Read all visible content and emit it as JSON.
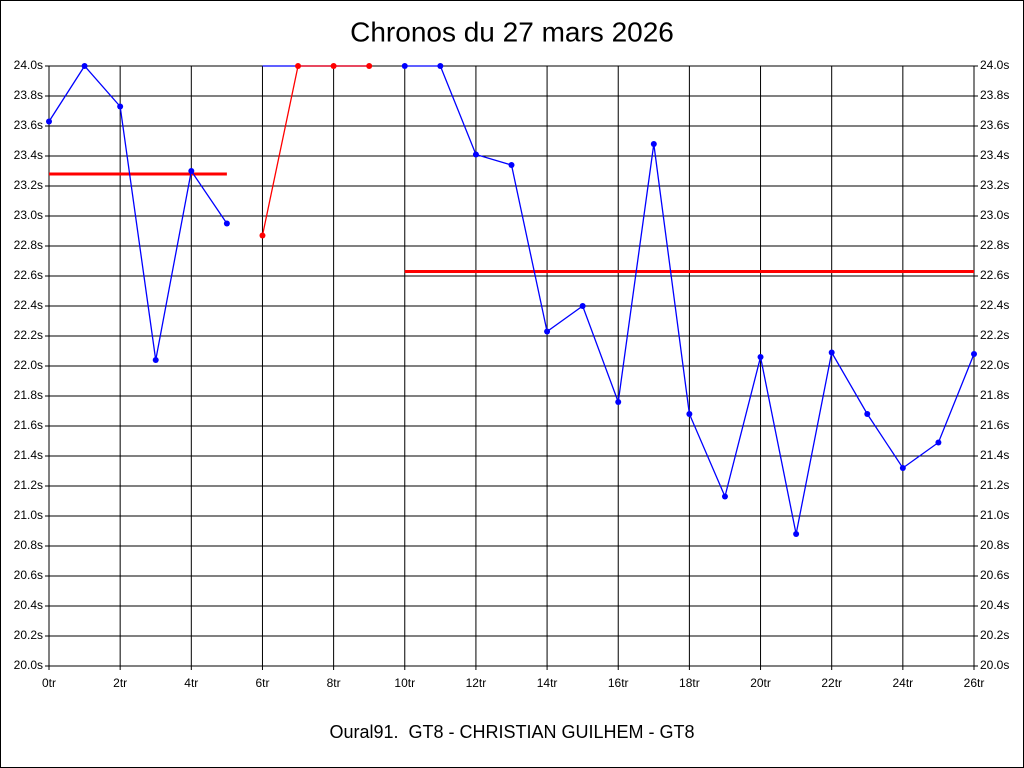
{
  "chart_data": {
    "type": "line",
    "title": "Chronos du 27 mars 2026",
    "footer": "Oural91.  GT8 - CHRISTIAN GUILHEM - GT8",
    "x": [
      0,
      1,
      2,
      3,
      4,
      5,
      6,
      7,
      8,
      9,
      10,
      11,
      12,
      13,
      14,
      15,
      16,
      17,
      18,
      19,
      20,
      21,
      22,
      23,
      24,
      25,
      26
    ],
    "series": [
      {
        "color": "#0000ff",
        "markers": true,
        "values": [
          23.63,
          24.0,
          23.73,
          22.04,
          23.3,
          22.95,
          null,
          null,
          null,
          null,
          24.0,
          24.0,
          23.41,
          23.34,
          22.23,
          22.4,
          21.76,
          23.48,
          21.68,
          21.13,
          22.06,
          20.88,
          22.09,
          21.68,
          21.32,
          21.49,
          22.08
        ]
      },
      {
        "color": "#0000ff",
        "markers": false,
        "values": [
          null,
          null,
          null,
          null,
          null,
          null,
          24.0,
          24.0,
          24.0,
          24.0,
          null,
          null,
          null,
          null,
          null,
          null,
          null,
          null,
          null,
          null,
          null,
          null,
          null,
          null,
          null,
          null,
          null
        ]
      },
      {
        "color": "#ff0000",
        "markers": true,
        "values": [
          null,
          null,
          null,
          null,
          null,
          null,
          22.87,
          24.0,
          24.0,
          24.0,
          null,
          null,
          null,
          null,
          null,
          null,
          null,
          null,
          null,
          null,
          null,
          null,
          null,
          null,
          null,
          null,
          null
        ]
      }
    ],
    "hlines": [
      {
        "x": [
          0,
          5
        ],
        "value": 23.28,
        "color": "#ff0000"
      },
      {
        "x": [
          10,
          26
        ],
        "value": 22.63,
        "color": "#ff0000"
      }
    ],
    "xlim": [
      0,
      26
    ],
    "ylim": [
      20.0,
      24.0
    ],
    "xticks": [
      {
        "value": 0,
        "label": "0tr"
      },
      {
        "value": 2,
        "label": "2tr"
      },
      {
        "value": 4,
        "label": "4tr"
      },
      {
        "value": 6,
        "label": "6tr"
      },
      {
        "value": 8,
        "label": "8tr"
      },
      {
        "value": 10,
        "label": "10tr"
      },
      {
        "value": 12,
        "label": "12tr"
      },
      {
        "value": 14,
        "label": "14tr"
      },
      {
        "value": 16,
        "label": "16tr"
      },
      {
        "value": 18,
        "label": "18tr"
      },
      {
        "value": 20,
        "label": "20tr"
      },
      {
        "value": 22,
        "label": "22tr"
      },
      {
        "value": 24,
        "label": "24tr"
      },
      {
        "value": 26,
        "label": "26tr"
      }
    ],
    "yticks": [
      {
        "value": 20.0,
        "label": "20.0s"
      },
      {
        "value": 20.2,
        "label": "20.2s"
      },
      {
        "value": 20.4,
        "label": "20.4s"
      },
      {
        "value": 20.6,
        "label": "20.6s"
      },
      {
        "value": 20.8,
        "label": "20.8s"
      },
      {
        "value": 21.0,
        "label": "21.0s"
      },
      {
        "value": 21.2,
        "label": "21.2s"
      },
      {
        "value": 21.4,
        "label": "21.4s"
      },
      {
        "value": 21.6,
        "label": "21.6s"
      },
      {
        "value": 21.8,
        "label": "21.8s"
      },
      {
        "value": 22.0,
        "label": "22.0s"
      },
      {
        "value": 22.2,
        "label": "22.2s"
      },
      {
        "value": 22.4,
        "label": "22.4s"
      },
      {
        "value": 22.6,
        "label": "22.6s"
      },
      {
        "value": 22.8,
        "label": "22.8s"
      },
      {
        "value": 23.0,
        "label": "23.0s"
      },
      {
        "value": 23.2,
        "label": "23.2s"
      },
      {
        "value": 23.4,
        "label": "23.4s"
      },
      {
        "value": 23.6,
        "label": "23.6s"
      },
      {
        "value": 23.8,
        "label": "23.8s"
      },
      {
        "value": 24.0,
        "label": "24.0s"
      }
    ],
    "grid": true
  }
}
